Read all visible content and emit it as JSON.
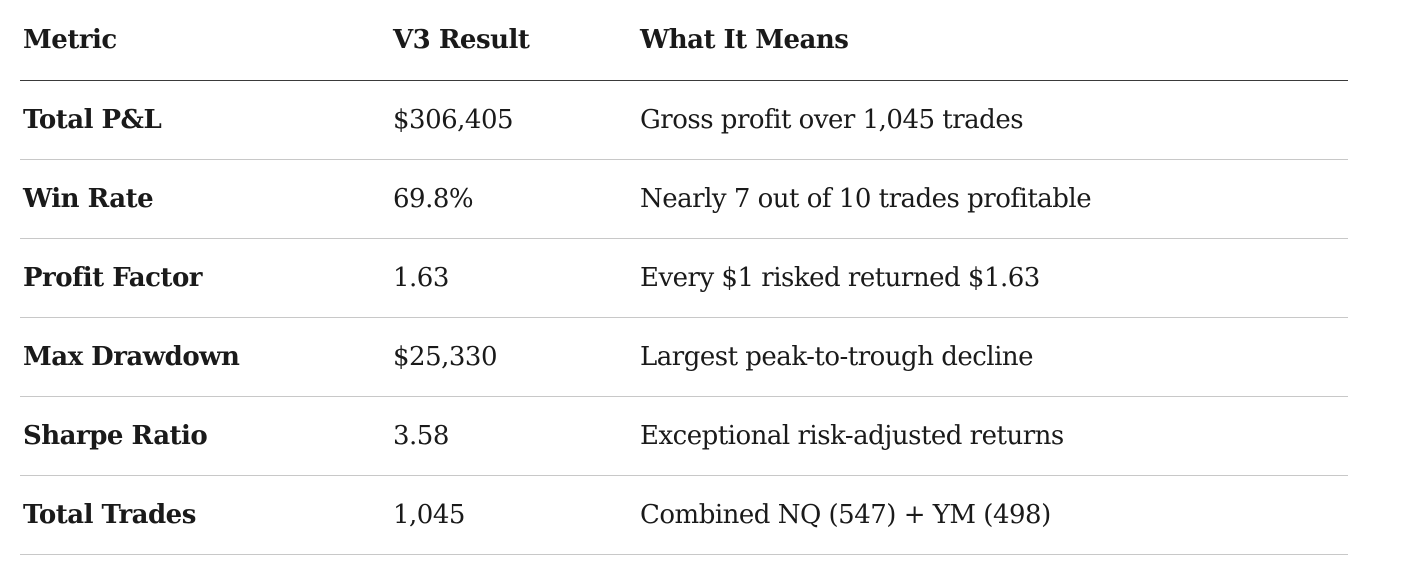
{
  "table": {
    "headers": [
      "Metric",
      "V3 Result",
      "What It Means"
    ],
    "rows": [
      {
        "metric": "Total P&L",
        "result": "$306,405",
        "meaning": "Gross profit over 1,045 trades"
      },
      {
        "metric": "Win Rate",
        "result": "69.8%",
        "meaning": "Nearly 7 out of 10 trades profitable"
      },
      {
        "metric": "Profit Factor",
        "result": "1.63",
        "meaning": "Every $1 risked returned $1.63"
      },
      {
        "metric": "Max Drawdown",
        "result": "$25,330",
        "meaning": "Largest peak-to-trough decline"
      },
      {
        "metric": "Sharpe Ratio",
        "result": "3.58",
        "meaning": "Exceptional risk-adjusted returns"
      },
      {
        "metric": "Total Trades",
        "result": "1,045",
        "meaning": "Combined NQ (547) + YM (498)"
      }
    ]
  }
}
